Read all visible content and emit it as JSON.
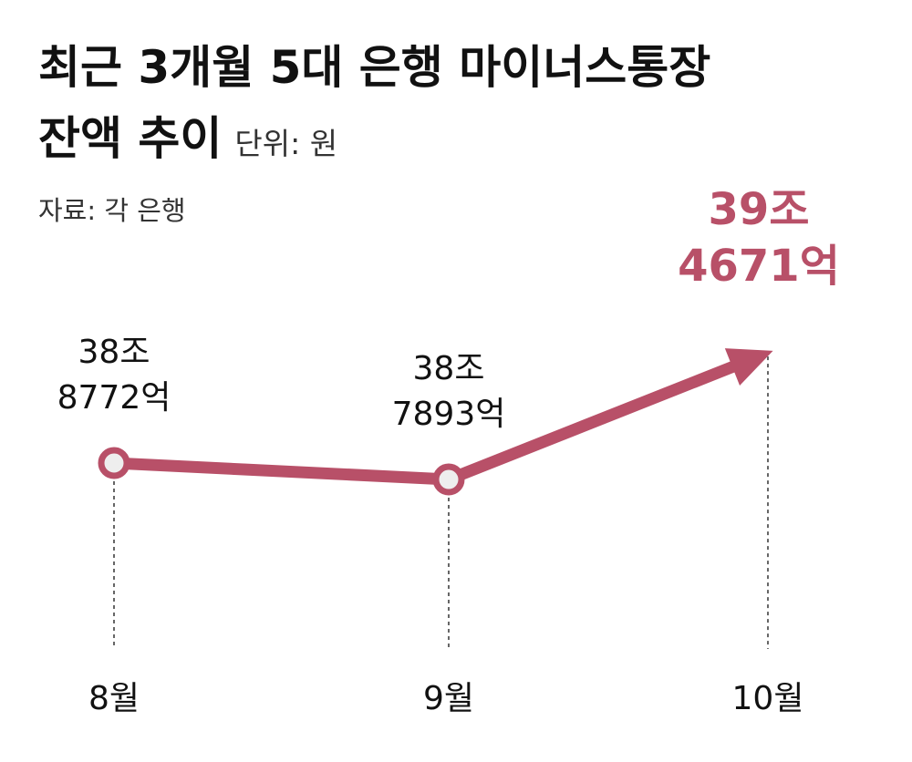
{
  "chart_data": {
    "type": "line",
    "title_line1": "최근 3개월 5대 은행 마이너스통장",
    "title_line2": "잔액 추이",
    "unit": "단위: 원",
    "source": "자료: 각 은행",
    "categories": [
      "8월",
      "9월",
      "10월"
    ],
    "series": [
      {
        "values": [
          388772,
          387893,
          394671
        ],
        "labels": [
          [
            "38조",
            "8772억"
          ],
          [
            "38조",
            "7893억"
          ],
          [
            "39조",
            "4671억"
          ]
        ]
      }
    ],
    "colors": {
      "line": "#b85068",
      "marker_fill": "#eeeeee",
      "highlight_label": "#b85068",
      "text": "#111111",
      "guide": "#333333"
    }
  }
}
